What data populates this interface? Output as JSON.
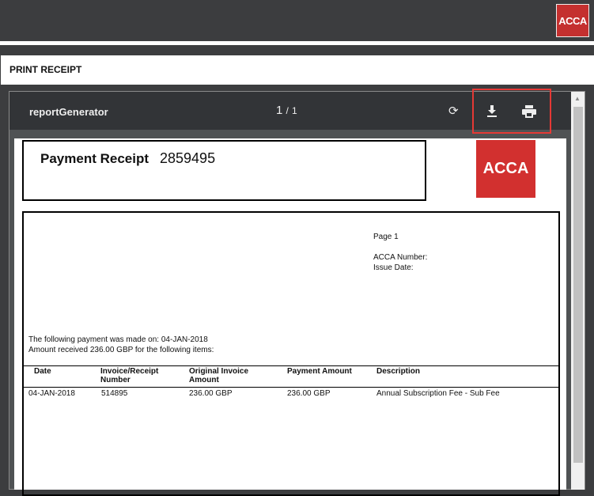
{
  "header": {
    "logo": "ACCA"
  },
  "page_title": "PRINT RECEIPT",
  "viewer": {
    "name": "reportGenerator",
    "page_current": "1",
    "page_sep": "/",
    "page_total": "1",
    "icons": [
      "rotate-icon",
      "download-icon",
      "print-icon"
    ]
  },
  "receipt": {
    "title": "Payment Receipt",
    "number": "2859495",
    "logo": "ACCA",
    "page": "Page 1",
    "acca_number_label": "ACCA Number:",
    "issue_date_label": "Issue Date:",
    "paid_line": "The following payment was made on: 04-JAN-2018",
    "amount_line": "Amount received 236.00 GBP for the following items:",
    "columns": [
      "Date",
      "Invoice/Receipt Number",
      "Original Invoice Amount",
      "Payment Amount",
      "Description"
    ],
    "rows": [
      [
        "04-JAN-2018",
        "514895",
        "236.00 GBP",
        "236.00 GBP",
        "Annual Subscription Fee - Sub Fee"
      ]
    ]
  },
  "colors": {
    "brand": "#d2302f",
    "highlight": "#e53935"
  }
}
